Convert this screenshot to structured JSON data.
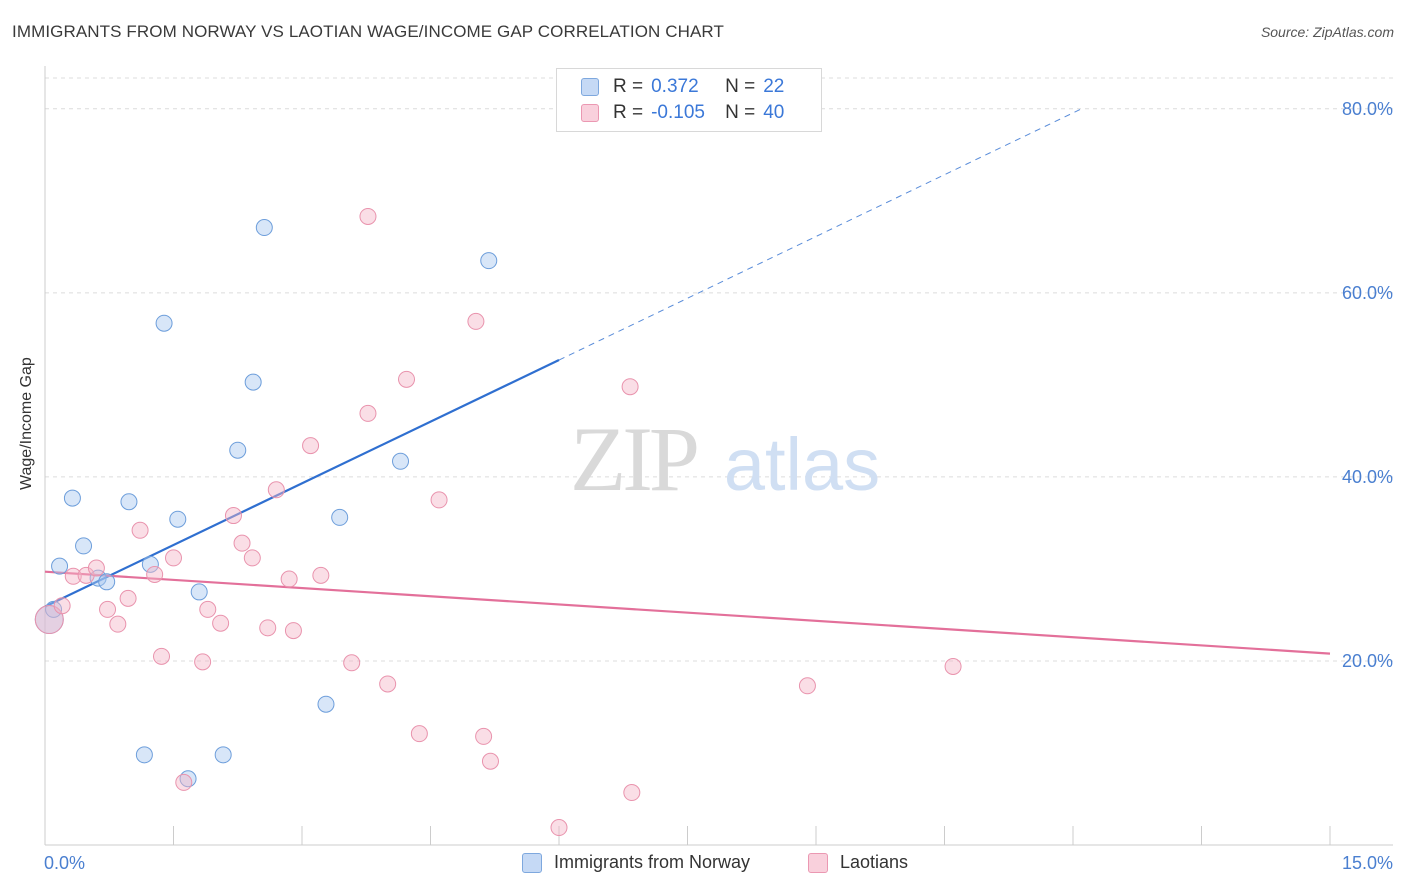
{
  "header": {
    "title": "IMMIGRANTS FROM NORWAY VS LAOTIAN WAGE/INCOME GAP CORRELATION CHART",
    "source": "Source: ZipAtlas.com"
  },
  "watermark": {
    "zip": "ZIP",
    "atlas": "atlas"
  },
  "legend": {
    "rows": [
      {
        "r_label": "R =",
        "r_value": "0.372",
        "n_label": "N =",
        "n_value": "22",
        "color": "#a9c7f0"
      },
      {
        "r_label": "R =",
        "r_value": "-0.105",
        "n_label": "N =",
        "n_value": "40",
        "color": "#f5b5c8"
      }
    ]
  },
  "bottom_legend": {
    "items": [
      {
        "label": "Immigrants from Norway",
        "color": "#a9c7f0"
      },
      {
        "label": "Laotians",
        "color": "#f5b5c8"
      }
    ]
  },
  "chart_data": {
    "type": "scatter",
    "title": "IMMIGRANTS FROM NORWAY VS LAOTIAN WAGE/INCOME GAP CORRELATION CHART",
    "xlabel": "",
    "ylabel": "Wage/Income Gap",
    "xlim": [
      0,
      15
    ],
    "ylim": [
      0,
      84
    ],
    "x_tick_labels": [
      "0.0%",
      "15.0%"
    ],
    "y_ticks": [
      20,
      40,
      60,
      80
    ],
    "y_tick_labels": [
      "20.0%",
      "40.0%",
      "60.0%",
      "80.0%"
    ],
    "grid": true,
    "legend_position": "top-center",
    "series": [
      {
        "name": "Immigrants from Norway",
        "color": "#a9c7f0",
        "edge_color": "#6d9edb",
        "line_color": "#2f6fd0",
        "trend": {
          "x0": 0.0,
          "y0": 25.9,
          "x1": 6.0,
          "y1": 52.7,
          "dash_to_x": 12.1,
          "dash_to_y": 80.0
        },
        "points": [
          {
            "x": 0.05,
            "y": 24.5
          },
          {
            "x": 0.17,
            "y": 30.3
          },
          {
            "x": 0.32,
            "y": 37.7
          },
          {
            "x": 0.45,
            "y": 32.5
          },
          {
            "x": 0.62,
            "y": 29.0
          },
          {
            "x": 0.72,
            "y": 28.6
          },
          {
            "x": 0.98,
            "y": 37.3
          },
          {
            "x": 1.16,
            "y": 9.8
          },
          {
            "x": 1.23,
            "y": 30.5
          },
          {
            "x": 1.39,
            "y": 56.7
          },
          {
            "x": 1.55,
            "y": 35.4
          },
          {
            "x": 1.67,
            "y": 7.2
          },
          {
            "x": 1.8,
            "y": 27.5
          },
          {
            "x": 2.08,
            "y": 9.8
          },
          {
            "x": 2.25,
            "y": 42.9
          },
          {
            "x": 2.43,
            "y": 50.3
          },
          {
            "x": 2.56,
            "y": 67.1
          },
          {
            "x": 3.28,
            "y": 15.3
          },
          {
            "x": 3.44,
            "y": 35.6
          },
          {
            "x": 4.15,
            "y": 41.7
          },
          {
            "x": 5.18,
            "y": 63.5
          },
          {
            "x": 0.1,
            "y": 25.6
          }
        ]
      },
      {
        "name": "Laotians",
        "color": "#f5b5c8",
        "edge_color": "#e993ad",
        "line_color": "#e3709a",
        "trend": {
          "x0": 0.0,
          "y0": 29.7,
          "x1": 15.0,
          "y1": 20.8
        },
        "points": [
          {
            "x": 0.05,
            "y": 24.5
          },
          {
            "x": 0.2,
            "y": 26.0
          },
          {
            "x": 0.33,
            "y": 29.2
          },
          {
            "x": 0.48,
            "y": 29.3
          },
          {
            "x": 0.6,
            "y": 30.1
          },
          {
            "x": 0.73,
            "y": 25.6
          },
          {
            "x": 0.85,
            "y": 24.0
          },
          {
            "x": 0.97,
            "y": 26.8
          },
          {
            "x": 1.11,
            "y": 34.2
          },
          {
            "x": 1.28,
            "y": 29.4
          },
          {
            "x": 1.36,
            "y": 20.5
          },
          {
            "x": 1.5,
            "y": 31.2
          },
          {
            "x": 1.62,
            "y": 6.8
          },
          {
            "x": 1.84,
            "y": 19.9
          },
          {
            "x": 1.9,
            "y": 25.6
          },
          {
            "x": 2.05,
            "y": 24.1
          },
          {
            "x": 2.2,
            "y": 35.8
          },
          {
            "x": 2.3,
            "y": 32.8
          },
          {
            "x": 2.42,
            "y": 31.2
          },
          {
            "x": 2.6,
            "y": 23.6
          },
          {
            "x": 2.7,
            "y": 38.6
          },
          {
            "x": 2.85,
            "y": 28.9
          },
          {
            "x": 2.9,
            "y": 23.3
          },
          {
            "x": 3.1,
            "y": 43.4
          },
          {
            "x": 3.22,
            "y": 29.3
          },
          {
            "x": 3.58,
            "y": 19.8
          },
          {
            "x": 3.77,
            "y": 46.9
          },
          {
            "x": 3.77,
            "y": 68.3
          },
          {
            "x": 4.0,
            "y": 17.5
          },
          {
            "x": 4.22,
            "y": 50.6
          },
          {
            "x": 4.37,
            "y": 12.1
          },
          {
            "x": 4.6,
            "y": 37.5
          },
          {
            "x": 5.03,
            "y": 56.9
          },
          {
            "x": 5.12,
            "y": 11.8
          },
          {
            "x": 5.2,
            "y": 9.1
          },
          {
            "x": 6.0,
            "y": 1.9
          },
          {
            "x": 6.85,
            "y": 5.7
          },
          {
            "x": 6.83,
            "y": 49.8
          },
          {
            "x": 8.9,
            "y": 17.3
          },
          {
            "x": 10.6,
            "y": 19.4
          }
        ]
      }
    ]
  }
}
